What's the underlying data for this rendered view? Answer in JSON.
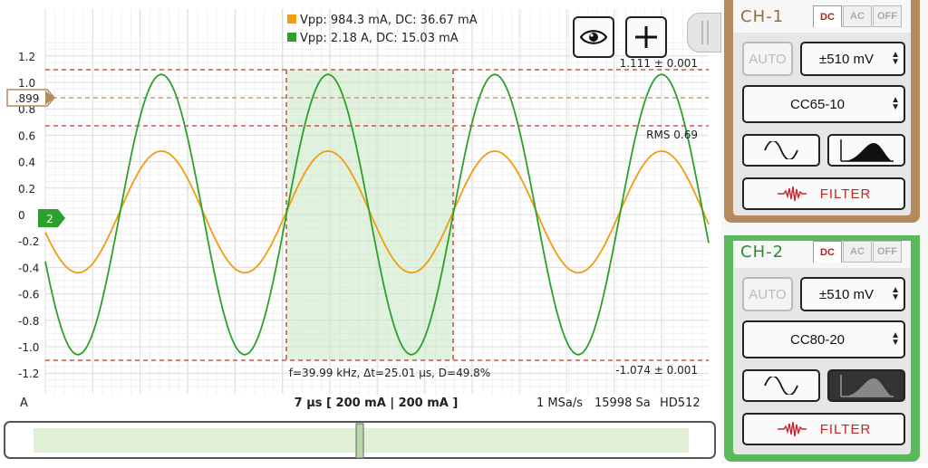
{
  "scope": {
    "legend": [
      {
        "text": "Vpp: 984.3 mA, DC: 36.67 mA",
        "color": "#f39c12"
      },
      {
        "text": "Vpp: 2.18 A, DC: 15.03 mA",
        "color": "#2ca02c"
      }
    ],
    "y_ticks": [
      "1.2",
      "1.0",
      "0.8",
      "0.6",
      "0.4",
      "0.2",
      "0",
      "-0.2",
      "-0.4",
      "-0.6",
      "-0.8",
      "-1.0",
      "-1.2"
    ],
    "upper_cursor_label": "1.111 ± 0.001",
    "lower_cursor_label": "-1.074 ± 0.001",
    "rms_label": "RMS 0.69",
    "trigger_marker": ".899",
    "channel_marker": "2",
    "measurement": "f=39.99 kHz, Δt=25.01 µs, D=49.8%",
    "unit": "A",
    "timebase": "7 µs  [ 200 mA | 200 mA ]",
    "sample_rate": "1 MSa/s",
    "samples": "15998 Sa",
    "mode": "HD512",
    "eye_icon": "eye-icon",
    "add_icon": "plus-icon",
    "colors": {
      "ch1": "#f39c12",
      "ch2": "#2ca02c",
      "cursor": "#c0392b"
    }
  },
  "ch1": {
    "title": "CH-1",
    "tabs": [
      "DC",
      "AC",
      "OFF"
    ],
    "active_tab": "DC",
    "auto_label": "AUTO",
    "range": "±510 mV",
    "probe": "CC65-10",
    "filter_label": "FILTER",
    "color": "#b58a5e"
  },
  "ch2": {
    "title": "CH-2",
    "tabs": [
      "DC",
      "AC",
      "OFF"
    ],
    "active_tab": "DC",
    "auto_label": "AUTO",
    "range": "±510 mV",
    "probe": "CC80-20",
    "filter_label": "FILTER",
    "color": "#5cb85c"
  }
}
